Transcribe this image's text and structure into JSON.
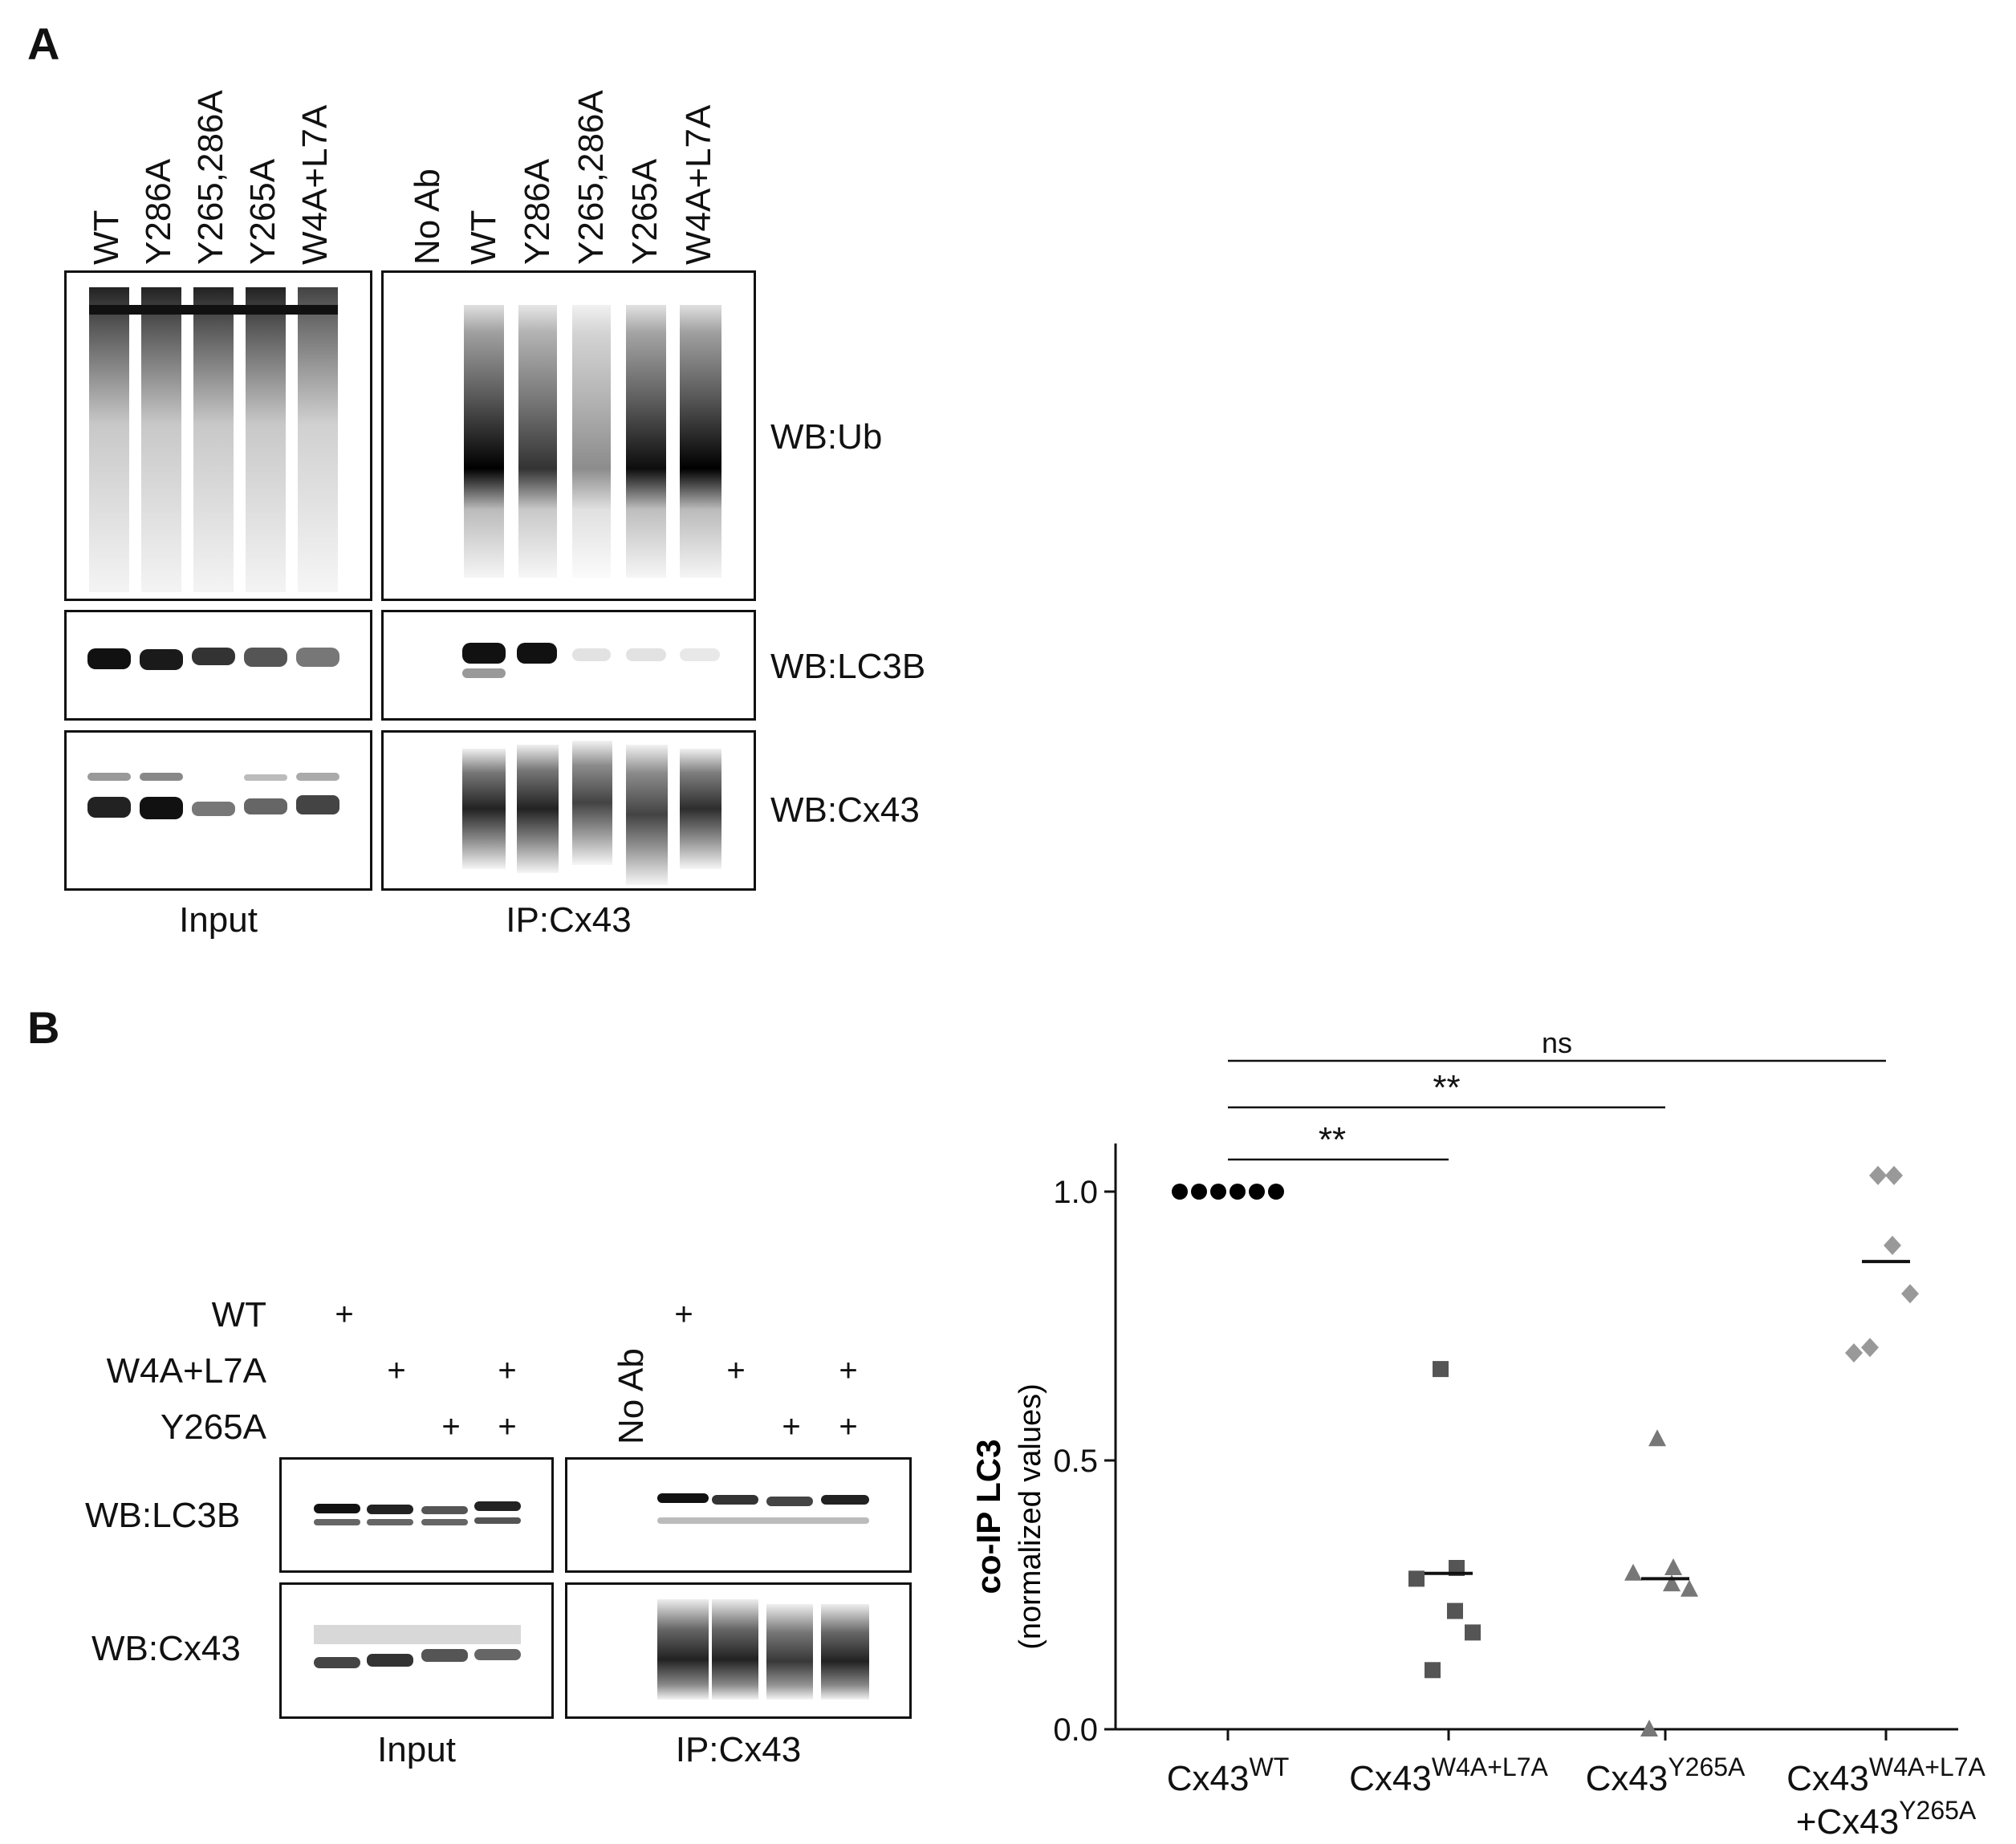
{
  "panel_a": {
    "letter": "A",
    "input_lanes": [
      "WT",
      "Y286A",
      "Y265,286A",
      "Y265A",
      "W4A+L7A"
    ],
    "ip_lanes": [
      "No Ab",
      "WT",
      "Y286A",
      "Y265,286A",
      "Y265A",
      "W4A+L7A"
    ],
    "blots": [
      "WB:Ub",
      "WB:LC3B",
      "WB:Cx43"
    ],
    "captions": {
      "input": "Input",
      "ip": "IP:Cx43"
    }
  },
  "panel_b": {
    "letter": "B",
    "conditions": [
      "WT",
      "W4A+L7A",
      "Y265A"
    ],
    "no_ab": "No Ab",
    "plus": "+",
    "blots": [
      "WB:LC3B",
      "WB:Cx43"
    ],
    "captions": {
      "input": "Input",
      "ip": "IP:Cx43"
    }
  },
  "chart_data": {
    "type": "scatter",
    "ylabel_bold": "co-IP LC3",
    "ylabel_sub": "(normalized values)",
    "ylim": [
      0,
      1.1
    ],
    "yticks": [
      "0.0",
      "0.5",
      "1.0"
    ],
    "groups": [
      {
        "base": "Cx43",
        "sup": "WT",
        "line2": "",
        "line2_sup": "",
        "marker": "circle",
        "color": "#000000",
        "values": [
          1.0,
          1.0,
          1.0,
          1.0,
          1.0,
          1.0
        ],
        "mean": 1.0
      },
      {
        "base": "Cx43",
        "sup": "W4A+L7A",
        "line2": "",
        "line2_sup": "",
        "marker": "square",
        "color": "#555555",
        "values": [
          0.67,
          0.3,
          0.22,
          0.18,
          0.11,
          0.28
        ],
        "mean": 0.29
      },
      {
        "base": "Cx43",
        "sup": "Y265A",
        "line2": "",
        "line2_sup": "",
        "marker": "triangle",
        "color": "#777777",
        "values": [
          0.54,
          0.3,
          0.27,
          0.26,
          0.0,
          0.29
        ],
        "mean": 0.28
      },
      {
        "base": "Cx43",
        "sup": "W4A+L7A",
        "line2": "+Cx43",
        "line2_sup": "Y265A",
        "marker": "diamond",
        "color": "#999999",
        "values": [
          1.03,
          1.03,
          0.9,
          0.81,
          0.71,
          0.7
        ],
        "mean": 0.87
      }
    ],
    "comparisons": [
      {
        "from": 0,
        "to": 1,
        "label": "**"
      },
      {
        "from": 0,
        "to": 2,
        "label": "**"
      },
      {
        "from": 0,
        "to": 3,
        "label": "ns"
      }
    ]
  }
}
